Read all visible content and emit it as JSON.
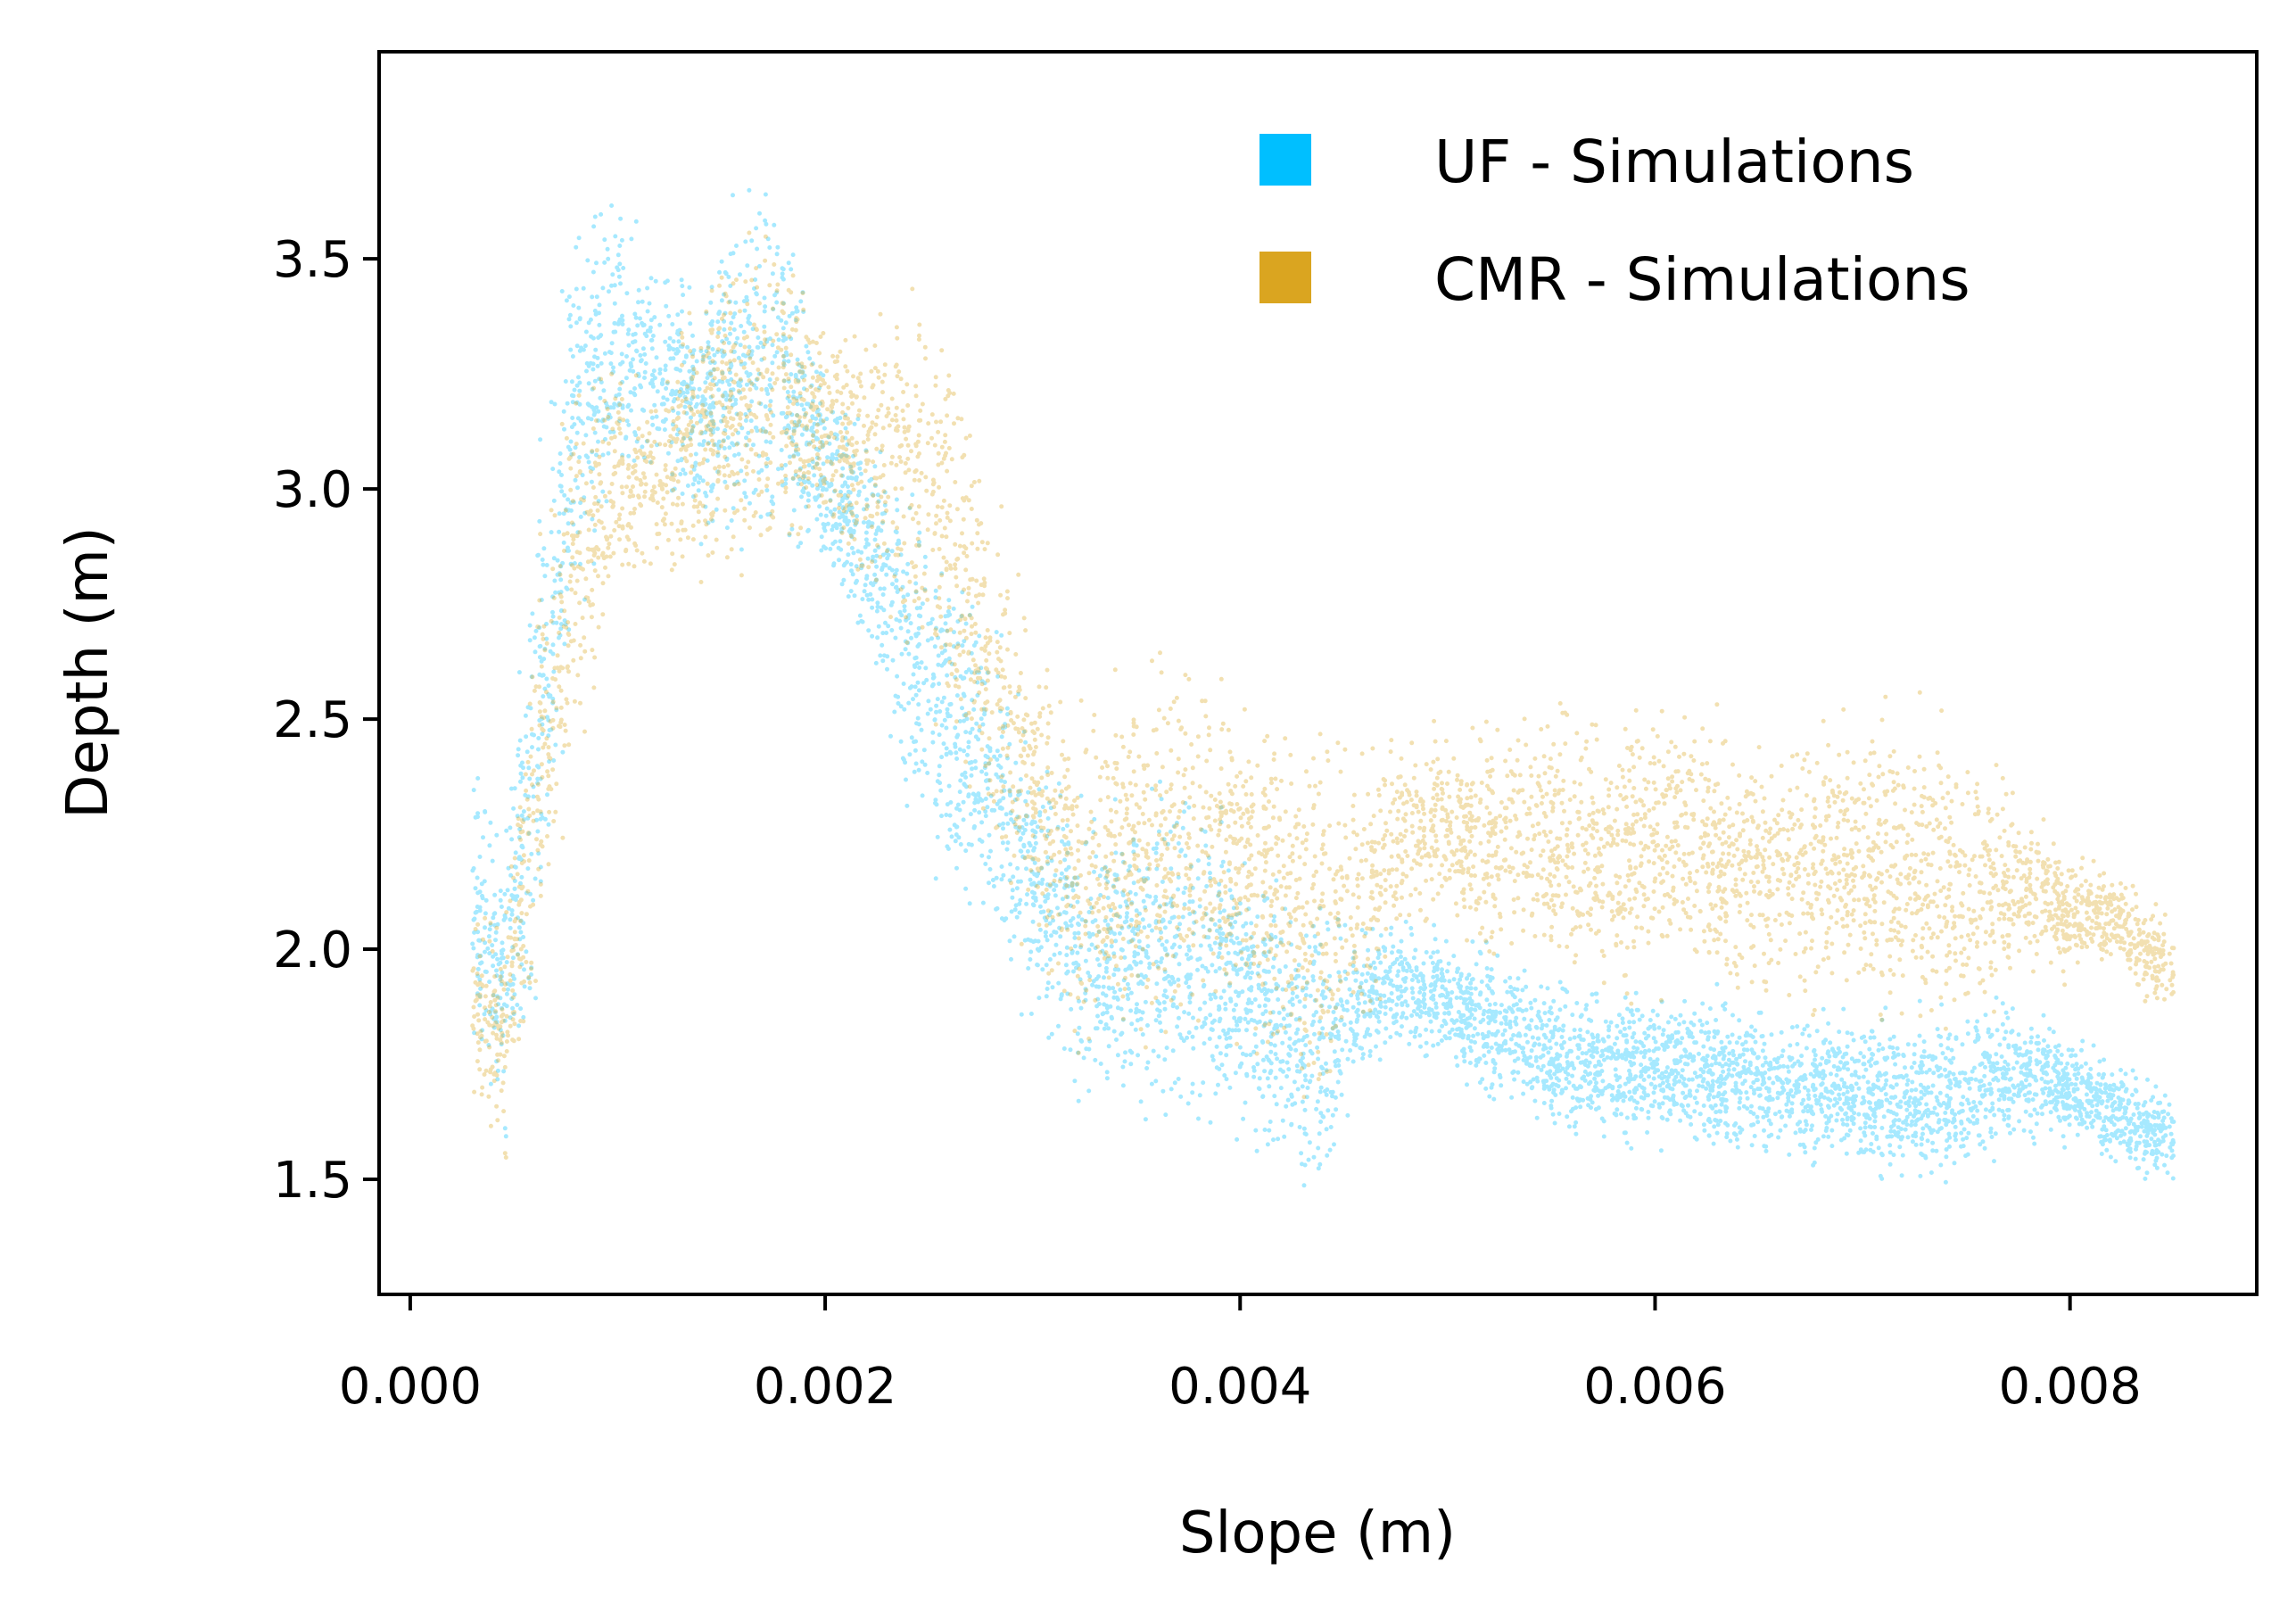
{
  "chart_data": {
    "type": "scatter",
    "title": "",
    "xlabel": "Slope (m)",
    "ylabel": "Depth (m)",
    "xlim": [
      -0.00015,
      0.0089
    ],
    "ylim": [
      1.25,
      3.95
    ],
    "x_ticks": [
      0.0,
      0.002,
      0.004,
      0.006,
      0.008
    ],
    "x_tick_labels": [
      "0.000",
      "0.002",
      "0.004",
      "0.006",
      "0.008"
    ],
    "y_ticks": [
      1.5,
      2.0,
      2.5,
      3.0,
      3.5
    ],
    "y_tick_labels": [
      "1.5",
      "2.0",
      "2.5",
      "3.0",
      "3.5"
    ],
    "grid": false,
    "legend_position": "top-right",
    "series": [
      {
        "name": "UF - Simulations",
        "color": "#00BFFF",
        "opacity": 0.35,
        "envelope": {
          "x": [
            0.0003,
            0.00045,
            0.0006,
            0.0008,
            0.001,
            0.0012,
            0.0014,
            0.0016,
            0.0018,
            0.002,
            0.0022,
            0.0024,
            0.0026,
            0.0028,
            0.003,
            0.0032,
            0.0034,
            0.0036,
            0.0038,
            0.004,
            0.0042,
            0.0044,
            0.0046,
            0.0048,
            0.005,
            0.0052,
            0.0054,
            0.0056,
            0.0058,
            0.006,
            0.0062,
            0.0064,
            0.0066,
            0.0068,
            0.007,
            0.0072,
            0.0074,
            0.0076,
            0.0078,
            0.008,
            0.0082,
            0.0085
          ],
          "y_min": [
            1.7,
            1.55,
            1.6,
            2.6,
            2.9,
            2.95,
            2.8,
            2.75,
            2.8,
            2.75,
            2.6,
            2.2,
            2.0,
            1.95,
            1.8,
            1.65,
            1.55,
            1.5,
            1.5,
            1.55,
            1.45,
            1.4,
            1.7,
            1.75,
            1.7,
            1.65,
            1.6,
            1.55,
            1.55,
            1.55,
            1.5,
            1.5,
            1.5,
            1.5,
            1.45,
            1.45,
            1.45,
            1.5,
            1.55,
            1.55,
            1.5,
            1.47
          ],
          "y_max": [
            2.5,
            2.3,
            3.1,
            3.75,
            3.75,
            3.6,
            3.5,
            3.8,
            3.7,
            3.3,
            3.2,
            3.1,
            3.0,
            2.8,
            2.5,
            2.4,
            2.4,
            2.5,
            2.5,
            2.3,
            2.2,
            2.15,
            2.1,
            2.1,
            2.05,
            2.05,
            2.0,
            1.95,
            1.95,
            1.95,
            1.95,
            1.95,
            1.9,
            1.9,
            1.9,
            1.9,
            1.9,
            1.95,
            1.9,
            1.85,
            1.8,
            1.7
          ]
        }
      },
      {
        "name": "CMR - Simulations",
        "color": "#DAA520",
        "opacity": 0.35,
        "envelope": {
          "x": [
            0.0003,
            0.00045,
            0.0006,
            0.0008,
            0.001,
            0.0012,
            0.0014,
            0.0016,
            0.0018,
            0.002,
            0.0022,
            0.0024,
            0.0026,
            0.0028,
            0.003,
            0.0032,
            0.0034,
            0.0036,
            0.0038,
            0.004,
            0.0042,
            0.0044,
            0.0046,
            0.0048,
            0.005,
            0.0052,
            0.0054,
            0.0056,
            0.0058,
            0.006,
            0.0062,
            0.0064,
            0.0066,
            0.0068,
            0.007,
            0.0072,
            0.0074,
            0.0076,
            0.0078,
            0.008,
            0.0082,
            0.0085
          ],
          "y_min": [
            1.6,
            1.5,
            1.7,
            2.3,
            2.7,
            2.75,
            2.7,
            2.7,
            2.8,
            2.85,
            2.7,
            2.55,
            2.3,
            2.1,
            1.95,
            1.75,
            1.65,
            1.65,
            1.7,
            1.75,
            1.65,
            1.55,
            1.7,
            2.0,
            2.0,
            1.95,
            1.9,
            1.85,
            1.85,
            1.85,
            1.85,
            1.8,
            1.8,
            1.8,
            1.75,
            1.75,
            1.75,
            1.8,
            1.9,
            1.9,
            1.95,
            1.8
          ],
          "y_max": [
            2.2,
            2.1,
            2.9,
            3.4,
            3.35,
            3.3,
            3.55,
            3.7,
            3.6,
            3.4,
            3.45,
            3.55,
            3.55,
            3.1,
            2.75,
            2.6,
            2.7,
            2.8,
            2.8,
            2.65,
            2.6,
            2.55,
            2.55,
            2.55,
            2.5,
            2.55,
            2.6,
            2.6,
            2.55,
            2.65,
            2.6,
            2.55,
            2.55,
            2.55,
            2.6,
            2.6,
            2.55,
            2.5,
            2.35,
            2.25,
            2.2,
            2.1
          ]
        }
      }
    ]
  }
}
